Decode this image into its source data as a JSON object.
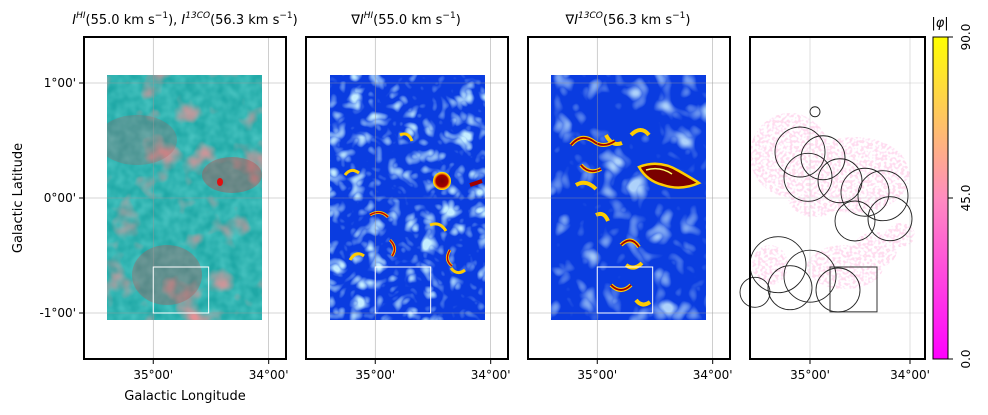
{
  "chart_data": [
    {
      "type": "heatmap",
      "title": "I^HI(55.0 km s^-1), I^13CO(56.3 km s^-1)",
      "title_parts": {
        "a": "I",
        "a_sup": "HI",
        "a_rest": "(55.0 km s",
        "a_unit_sup": "−1",
        "a_close": "), ",
        "b": "I",
        "b_sup": "13CO",
        "b_rest": "(56.3 km s",
        "b_unit_sup": "−1",
        "b_close": ")"
      },
      "xlabel": "Galactic Longitude",
      "ylabel": "Galactic Latitude",
      "xticks": [
        "35°00'",
        "34°00'"
      ],
      "yticks": [
        "1°00'",
        "0°00'",
        "-1°00'"
      ],
      "xlim_deg": [
        35.6,
        33.85
      ],
      "ylim_deg": [
        -1.4,
        1.4
      ],
      "grid": true,
      "colors": {
        "hi": "#20b4b0",
        "co": "#d04040"
      },
      "box_deg": {
        "lon": [
          35.0,
          34.52
        ],
        "lat": [
          -1.0,
          -0.6
        ]
      }
    },
    {
      "type": "heatmap",
      "title": "∇I^HI(55.0 km s^-1)",
      "title_parts": {
        "a": "∇I",
        "a_sup": "HI",
        "a_rest": "(55.0 km s",
        "a_unit_sup": "−1",
        "a_close": ")"
      },
      "xticks": [
        "35°00'",
        "34°00'"
      ],
      "xlim_deg": [
        35.6,
        33.85
      ],
      "ylim_deg": [
        -1.4,
        1.4
      ],
      "colormap": "jet",
      "grid": true,
      "box_deg": {
        "lon": [
          35.0,
          34.52
        ],
        "lat": [
          -1.0,
          -0.6
        ]
      }
    },
    {
      "type": "heatmap",
      "title": "∇I^13CO(56.3 km s^-1)",
      "title_parts": {
        "a": "∇I",
        "a_sup": "13CO",
        "a_rest": "(56.3 km s",
        "a_unit_sup": "−1",
        "a_close": ")"
      },
      "xticks": [
        "35°00'",
        "34°00'"
      ],
      "xlim_deg": [
        35.6,
        33.85
      ],
      "ylim_deg": [
        -1.4,
        1.4
      ],
      "colormap": "jet",
      "grid": true,
      "box_deg": {
        "lon": [
          35.0,
          34.52
        ],
        "lat": [
          -1.0,
          -0.6
        ]
      }
    },
    {
      "type": "heatmap",
      "title": "",
      "xticks": [
        "35°00'",
        "34°00'"
      ],
      "xlim_deg": [
        35.6,
        33.85
      ],
      "ylim_deg": [
        -1.4,
        1.4
      ],
      "grid": true,
      "colorbar": {
        "label": "|φ|",
        "ticks": [
          "0.0",
          "45.0",
          "90.0"
        ],
        "range": [
          0,
          90
        ],
        "colors": [
          "#ff00ff",
          "#ff8cc0",
          "#ffff00"
        ]
      },
      "circles": [
        {
          "lon": 35.1,
          "lat": 0.4,
          "r": 0.25
        },
        {
          "lon": 34.87,
          "lat": 0.35,
          "r": 0.22
        },
        {
          "lon": 35.02,
          "lat": 0.18,
          "r": 0.24
        },
        {
          "lon": 34.7,
          "lat": 0.15,
          "r": 0.22
        },
        {
          "lon": 34.45,
          "lat": 0.05,
          "r": 0.24
        },
        {
          "lon": 34.27,
          "lat": 0.02,
          "r": 0.25
        },
        {
          "lon": 34.2,
          "lat": -0.18,
          "r": 0.22
        },
        {
          "lon": 34.55,
          "lat": -0.2,
          "r": 0.2
        },
        {
          "lon": 35.32,
          "lat": -0.58,
          "r": 0.28
        },
        {
          "lon": 35.0,
          "lat": -0.68,
          "r": 0.26
        },
        {
          "lon": 34.72,
          "lat": -0.8,
          "r": 0.22
        },
        {
          "lon": 35.2,
          "lat": -0.78,
          "r": 0.22
        },
        {
          "lon": 35.55,
          "lat": -0.82,
          "r": 0.15
        },
        {
          "lon": 34.95,
          "lat": 0.75,
          "r": 0.05
        }
      ],
      "box_deg": {
        "lon": [
          34.8,
          34.33
        ],
        "lat": [
          -0.99,
          -0.6
        ]
      }
    }
  ]
}
